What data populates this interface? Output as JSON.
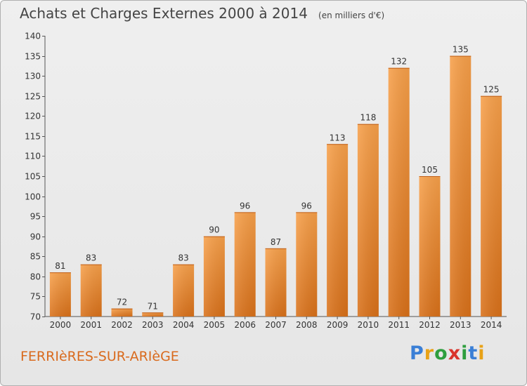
{
  "title": "Achats et Charges Externes 2000 à 2014",
  "subtitle": "(en milliers d'€)",
  "commune": "FERRIèRES-SUR-ARIèGE",
  "logo": {
    "text": "Proxiti",
    "letter_colors": [
      "#3a7fd6",
      "#e8a217",
      "#2e9e3e",
      "#d9342b",
      "#2e9e3e",
      "#3a7fd6",
      "#e8a217"
    ]
  },
  "colors": {
    "bar_light": "#f7a04a",
    "bar_dark": "#d9711a",
    "accent": "#d96a1d"
  },
  "chart_data": {
    "type": "bar",
    "title": "Achats et Charges Externes 2000 à 2014",
    "subtitle": "(en milliers d'€)",
    "categories": [
      "2000",
      "2001",
      "2002",
      "2003",
      "2004",
      "2005",
      "2006",
      "2007",
      "2008",
      "2009",
      "2010",
      "2011",
      "2012",
      "2013",
      "2014"
    ],
    "values": [
      81,
      83,
      72,
      71,
      83,
      90,
      96,
      87,
      96,
      113,
      118,
      132,
      105,
      135,
      125
    ],
    "ylim": [
      70,
      140
    ],
    "yticks": [
      70,
      75,
      80,
      85,
      90,
      95,
      100,
      105,
      110,
      115,
      120,
      125,
      130,
      135,
      140
    ],
    "grid": false,
    "xlabel": "",
    "ylabel": ""
  }
}
